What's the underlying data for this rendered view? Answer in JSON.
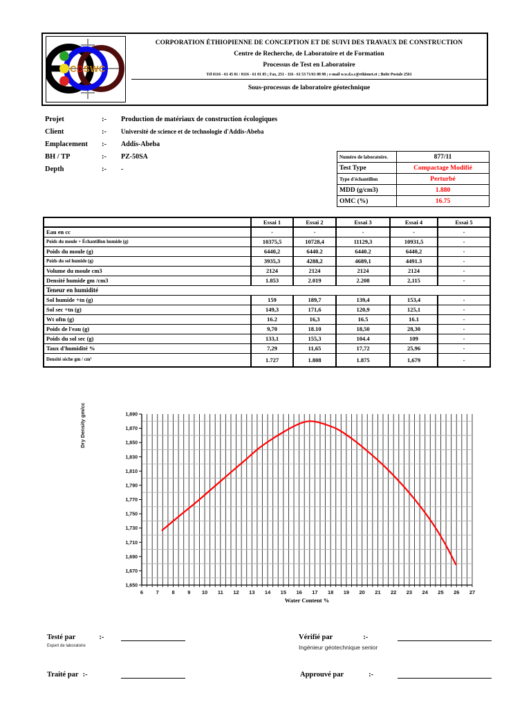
{
  "header": {
    "logo": {
      "text": "CDSWC",
      "colors": {
        "black_ring": "#000000",
        "blue_ring": "#0a0ae6",
        "maroon_ring": "#4e0c0c",
        "dot_green": "#27a327",
        "dot_yellow": "#efdc1e",
        "dot_red": "#df2222",
        "text_gold": "#c8860a",
        "text_red": "#cc1504",
        "crosshair_gray": "#8f8f8f"
      }
    },
    "line1": "CORPORATION ÉTHIOPIENNE DE CONCEPTION ET DE SUIVI DES TRAVAUX DE CONSTRUCTION",
    "line2": "Centre de Recherche, de Laboratoire et de Formation",
    "line3": "Processus de Test en Laboratoire",
    "contact": "Tél 0116 - 61 45 01 / 0116 - 61 01 05 ; Fax, 251 - 116 - 61 53 71/61 08 98 ; e-mail w.w.d.s.c@ethionet.et ; Boîte Postale 2561",
    "subprocess": "Sous-processus de laboratoire géotechnique"
  },
  "project": {
    "rows": [
      {
        "label": "Projet",
        "sep": ":-",
        "value": "Production de matériaux de construction écologiques",
        "small_val": false
      },
      {
        "label": "Client",
        "sep": ":-",
        "value": "Université de science et de technologie d'Addis-Abeba",
        "small_val": true
      },
      {
        "label": "Emplacement",
        "sep": ":-",
        "value": "Addis-Abeba",
        "small_val": false
      },
      {
        "label": "BH / TP",
        "sep": ":-",
        "value": "PZ-50SA",
        "small_val": false
      },
      {
        "label": "Depth",
        "sep": ":-",
        "value": "-",
        "small_val": false
      }
    ]
  },
  "test_info": {
    "red": "#ff0000",
    "rows": [
      {
        "label": "Numéro de laboratoire.",
        "value": "877/11",
        "red": false,
        "small_label": true
      },
      {
        "label": "Test Type",
        "value": "Compactage Modifié",
        "red": true,
        "small_label": false
      },
      {
        "label": "Type d'échantillon",
        "value": "Perturbé",
        "red": true,
        "small_label": true
      },
      {
        "label": "MDD (g/cm3)",
        "value": "1.880",
        "red": true,
        "small_label": false
      },
      {
        "label": "OMC (%)",
        "value": "16.75",
        "red": true,
        "small_label": false
      }
    ]
  },
  "results": {
    "columns": [
      "",
      "Essai 1",
      "Essai 2",
      "Essai 3",
      "Essai 4",
      "Essai 5"
    ],
    "rows": [
      {
        "label": "Eau en cc",
        "values": [
          "-",
          "-",
          "-",
          "-",
          "-"
        ]
      },
      {
        "label": "Poids du moule + Échantillon humide (g)",
        "small": true,
        "values": [
          "10375,5",
          "10728,4",
          "11129,3",
          "10931,5",
          "-"
        ]
      },
      {
        "label": "Poids du moule (g)",
        "values": [
          "6440,2",
          "6440.2",
          "6440.2",
          "6440,2",
          "-"
        ]
      },
      {
        "label": "Poids du sol humide (g)",
        "small": true,
        "values": [
          "3935,3",
          "4288,2",
          "4689,1",
          "4491.3",
          "-"
        ]
      },
      {
        "label": "Volume du moule cm3",
        "values": [
          "2124",
          "2124",
          "2124",
          "2124",
          "-"
        ]
      },
      {
        "label": "Densité humide gm /cm3",
        "values": [
          "1.853",
          "2.019",
          "2.208",
          "2,115",
          "-"
        ]
      },
      {
        "label": "Teneur en humidité",
        "section": true
      },
      {
        "label": "Sol humide +tn (g)",
        "values": [
          "159",
          "189,7",
          "139,4",
          "153,4",
          "-"
        ]
      },
      {
        "label": "Sol sec +tn (g)",
        "values": [
          "149,3",
          "171,6",
          "120,9",
          "125,1",
          "-"
        ]
      },
      {
        "label": "Wt oftn (g)",
        "values": [
          "16.2",
          "16,3",
          "16.5",
          "16.1",
          "-"
        ]
      },
      {
        "label": "Poids de l'eau (g)",
        "values": [
          "9,70",
          "18.10",
          "18,50",
          "28,30",
          "-"
        ]
      },
      {
        "label": "Poids du sol sec (g)",
        "values": [
          "133,1",
          "155,3",
          "104.4",
          "109",
          "-"
        ]
      },
      {
        "label": "Taux d'humidité %",
        "values": [
          "7,29",
          "11,65",
          "17,72",
          "25,96",
          "-"
        ]
      },
      {
        "label": "Densité sèche gm / cm³",
        "small": true,
        "tall": true,
        "values": [
          "1.727",
          "1.808",
          "1.875",
          "1,679",
          "-"
        ]
      }
    ]
  },
  "chart_data": {
    "type": "line",
    "title": "",
    "xlabel": "Water Content %",
    "ylabel": "Dry Density gm/cc",
    "xlim": [
      6,
      27
    ],
    "ylim": [
      1.65,
      1.89
    ],
    "x_ticks": [
      6,
      7,
      8,
      9,
      10,
      11,
      12,
      13,
      14,
      15,
      16,
      17,
      18,
      19,
      20,
      21,
      22,
      23,
      24,
      25,
      26,
      27
    ],
    "y_ticks": [
      1.65,
      1.67,
      1.69,
      1.71,
      1.73,
      1.75,
      1.77,
      1.79,
      1.81,
      1.83,
      1.85,
      1.87,
      1.89
    ],
    "y_tick_labels": [
      "1,650",
      "1,670",
      "1,690",
      "1,710",
      "1,730",
      "1,750",
      "1,770",
      "1,790",
      "1,810",
      "1,830",
      "1,850",
      "1,870",
      "1,890"
    ],
    "grid": {
      "v_step": 0.3333,
      "h_step": 0.02,
      "h_offset": 0.01,
      "v_color": "#2b2b2b",
      "h_color": "#b0b0b0"
    },
    "legend": "none",
    "peak": {
      "omc_percent": 16.75,
      "mdd_g_cm3": 1.88
    },
    "series": [
      {
        "name": "compaction curve",
        "color": "#ff0000",
        "measured_points": [
          [
            7.29,
            1.727
          ],
          [
            11.65,
            1.808
          ],
          [
            17.72,
            1.875
          ],
          [
            25.96,
            1.679
          ]
        ],
        "curve_points": [
          [
            7.3,
            1.727
          ],
          [
            8.5,
            1.749
          ],
          [
            9.5,
            1.767
          ],
          [
            10.5,
            1.786
          ],
          [
            11.65,
            1.808
          ],
          [
            12.5,
            1.824
          ],
          [
            13.5,
            1.843
          ],
          [
            14.5,
            1.858
          ],
          [
            15.5,
            1.871
          ],
          [
            16.2,
            1.878
          ],
          [
            16.75,
            1.88
          ],
          [
            17.3,
            1.878
          ],
          [
            17.72,
            1.875
          ],
          [
            18.5,
            1.868
          ],
          [
            19.5,
            1.853
          ],
          [
            20.5,
            1.835
          ],
          [
            21.5,
            1.815
          ],
          [
            22.5,
            1.792
          ],
          [
            23.5,
            1.766
          ],
          [
            24.5,
            1.736
          ],
          [
            25.3,
            1.707
          ],
          [
            25.96,
            1.679
          ]
        ]
      }
    ]
  },
  "footer": {
    "tested": {
      "label": "Testé par",
      "sep": ":-",
      "sub": "Expert de laboratoire"
    },
    "verified": {
      "label": "Vérifié par",
      "sep": ":-",
      "sub": "Ingénieur géotechnique senior"
    },
    "treated": {
      "label": "Traité par",
      "sep": ":-"
    },
    "approved": {
      "label": "Approuvé  par",
      "sep": ":-"
    }
  }
}
